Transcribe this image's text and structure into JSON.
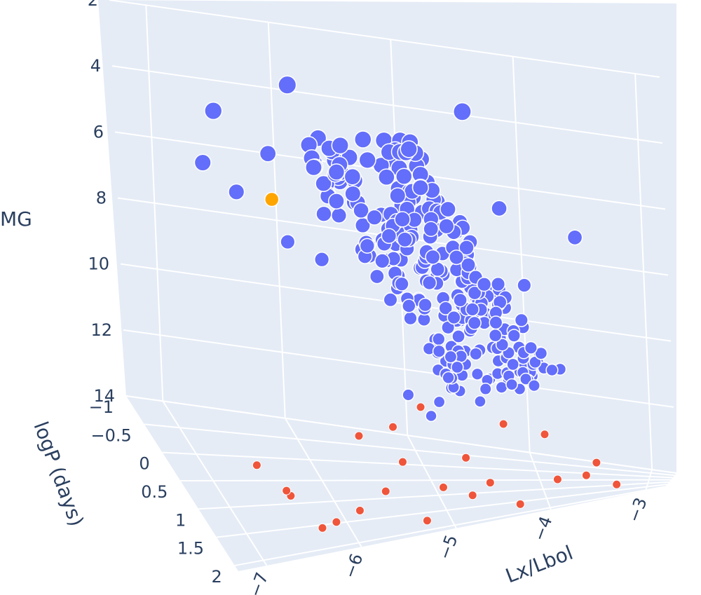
{
  "chart_data": {
    "type": "scatter3d",
    "axes": {
      "x": {
        "label": "Lx/Lbol",
        "ticks": [
          "−7",
          "−6",
          "−5",
          "−4",
          "−3"
        ],
        "range": [
          -7.3,
          -2.8
        ]
      },
      "y": {
        "label": "logP (days)",
        "ticks": [
          "−1",
          "−0.5",
          "0",
          "0.5",
          "1",
          "1.5",
          "2"
        ],
        "range": [
          -1,
          2.1
        ]
      },
      "z": {
        "label": "MG",
        "ticks": [
          "2",
          "4",
          "6",
          "8",
          "10",
          "12",
          "14"
        ],
        "range": [
          2,
          14
        ],
        "reversed": true
      }
    },
    "grid": true,
    "background": "#e5ecf6",
    "marker_colors": {
      "blue": "#636efa",
      "red": "#ef553b",
      "orange": "#ffa500"
    },
    "series": [
      {
        "color": "blue",
        "marker": "large circles with white outline",
        "points": [
          [
            -6.8,
            0.3,
            3.1
          ],
          [
            -6.1,
            0.2,
            2.4
          ],
          [
            -5.3,
            0.5,
            3.7
          ],
          [
            -4.6,
            0.8,
            2.6
          ],
          [
            -7.0,
            0.6,
            4.2
          ],
          [
            -6.7,
            0.6,
            5.1
          ],
          [
            -6.3,
            0.2,
            4.5
          ],
          [
            -5.9,
            0.6,
            5.8
          ],
          [
            -6.2,
            0.4,
            6.9
          ],
          [
            -6.0,
            0.9,
            6.8
          ],
          [
            -5.4,
            0.8,
            6.4
          ],
          [
            -5.4,
            1.1,
            7.9
          ],
          [
            -5.2,
            1.0,
            8.6
          ],
          [
            -5.0,
            1.2,
            9.1
          ],
          [
            -5.3,
            1.0,
            7.3
          ],
          [
            -4.3,
            0.9,
            5.5
          ],
          [
            -3.6,
            1.1,
            6.4
          ],
          [
            -4.1,
            1.0,
            7.8
          ],
          [
            -4.0,
            1.3,
            9.7
          ],
          [
            -3.8,
            1.2,
            10.3
          ],
          [
            -4.2,
            1.2,
            10.8
          ],
          [
            -4.6,
            1.3,
            11.0
          ],
          [
            -5.0,
            1.3,
            10.9
          ],
          [
            -5.3,
            1.3,
            10.6
          ],
          [
            -5.1,
            1.4,
            11.2
          ],
          [
            -4.7,
            1.1,
            5.7
          ],
          [
            -4.6,
            1.0,
            6.4
          ],
          [
            -4.6,
            1.1,
            7.6
          ],
          [
            -4.9,
            1.2,
            8.4
          ],
          [
            -5.1,
            1.1,
            7.0
          ]
        ]
      },
      {
        "color": "red",
        "marker": "small circles",
        "points": [
          [
            -5.4,
            1.4,
            12.5
          ],
          [
            -5.8,
            1.3,
            11.7
          ],
          [
            -5.5,
            1.5,
            11.3
          ],
          [
            -5.2,
            1.4,
            10.9
          ],
          [
            -4.8,
            1.6,
            12.4
          ],
          [
            -4.4,
            1.5,
            11.6
          ],
          [
            -4.0,
            1.6,
            12.0
          ],
          [
            -3.9,
            1.8,
            13.3
          ],
          [
            -3.6,
            1.6,
            13.4
          ],
          [
            -4.6,
            1.9,
            13.0
          ],
          [
            -4.3,
            1.9,
            13.8
          ],
          [
            -4.8,
            2.0,
            13.2
          ],
          [
            -5.1,
            2.0,
            12.8
          ],
          [
            -5.3,
            2.1,
            13.6
          ],
          [
            -5.7,
            2.0,
            12.6
          ],
          [
            -6.0,
            2.1,
            12.9
          ],
          [
            -6.2,
            1.9,
            13.4
          ],
          [
            -6.4,
            2.1,
            13.2
          ],
          [
            -3.5,
            2.0,
            12.9
          ],
          [
            -3.3,
            1.9,
            13.7
          ],
          [
            -6.6,
            1.7,
            12.7
          ],
          [
            -6.7,
            1.9,
            12.2
          ],
          [
            -6.9,
            1.6,
            11.8
          ]
        ]
      },
      {
        "color": "orange",
        "marker": "circle",
        "points": [
          [
            -6.4,
            0.7,
            5.2
          ]
        ]
      }
    ]
  }
}
